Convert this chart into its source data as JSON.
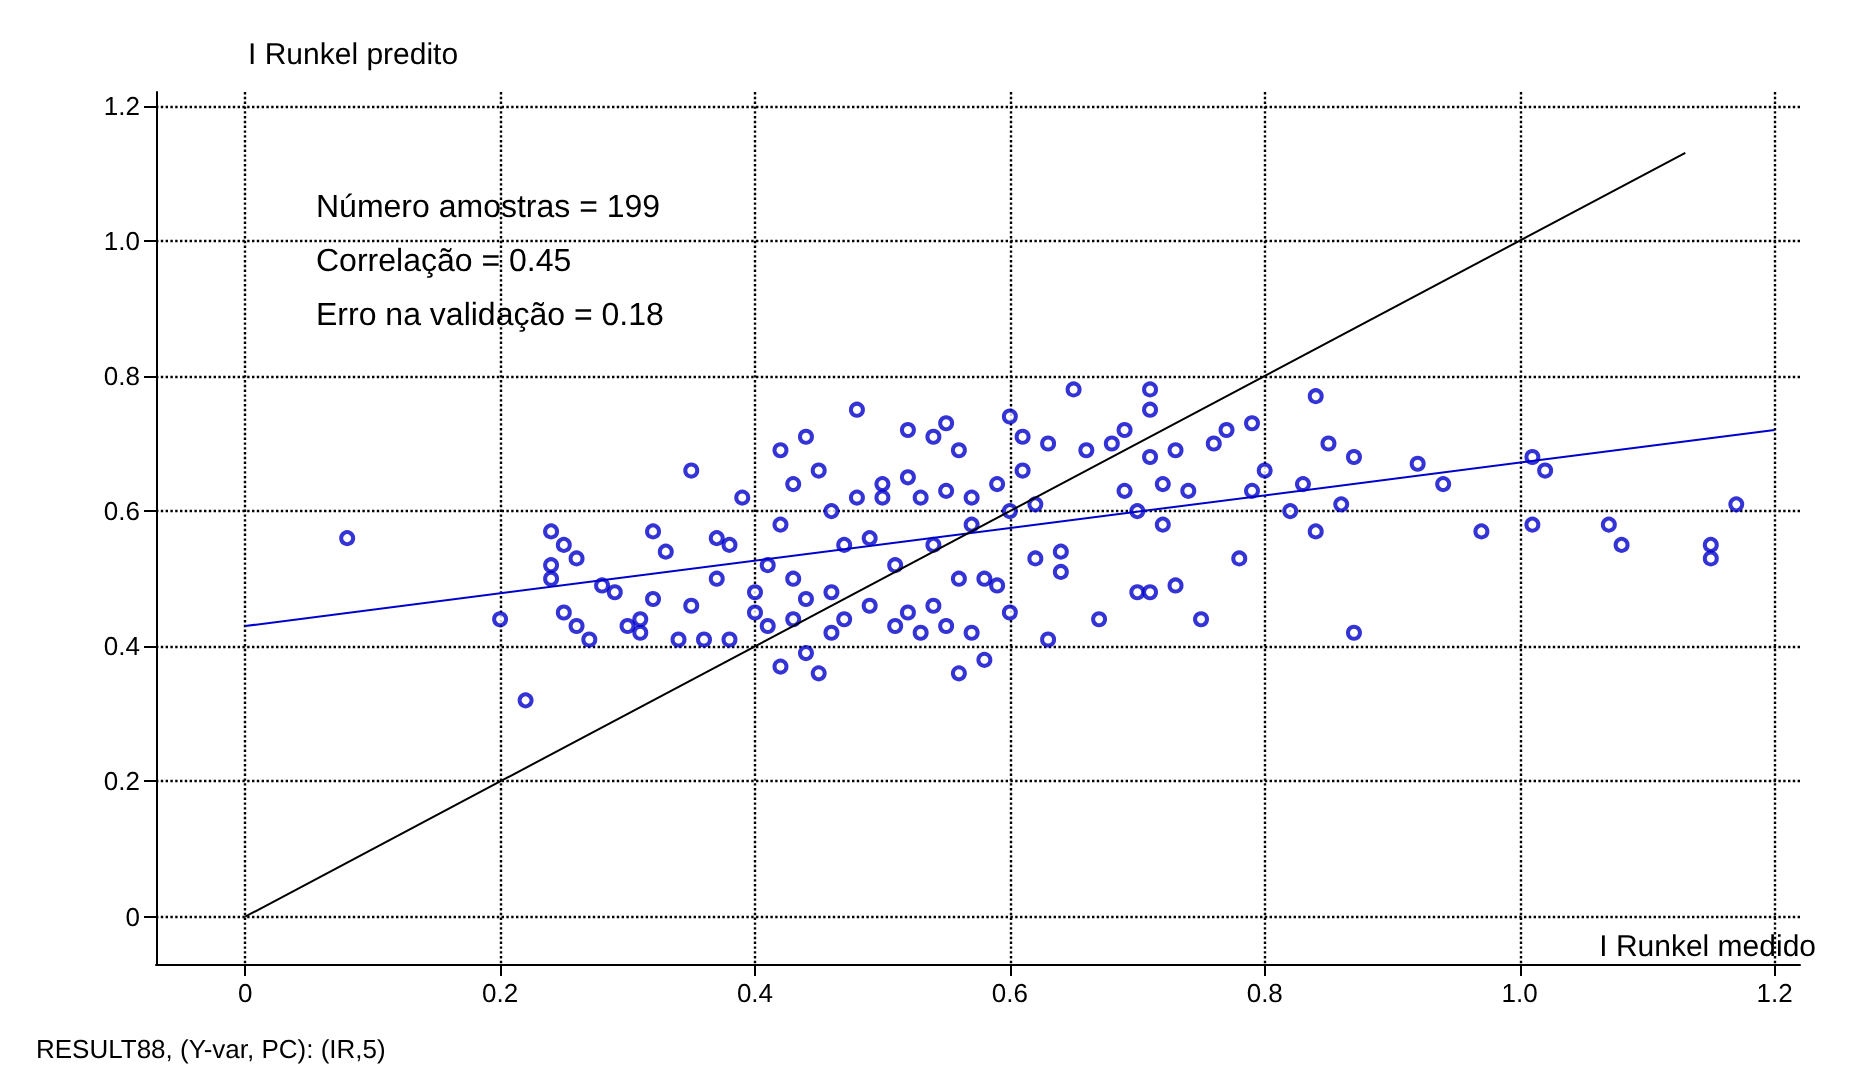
{
  "chart_data": {
    "type": "scatter",
    "xlabel": "I Runkel medido",
    "ylabel": "I Runkel predito",
    "xlim": [
      -0.07,
      1.22
    ],
    "ylim": [
      -0.07,
      1.22
    ],
    "xticks": [
      0,
      0.2,
      0.4,
      0.6,
      0.8,
      {
        "value": 1,
        "label": "1.0"
      },
      1.2
    ],
    "yticks": [
      0,
      0.2,
      0.4,
      0.6,
      0.8,
      {
        "value": 1,
        "label": "1.0"
      },
      1.2
    ],
    "grid": true,
    "annotations": [
      "Número amostras = 199",
      "Correlação = 0.45",
      "Erro na validação = 0.18",
      "RESULT88, (Y-var, PC): (IR,5)"
    ],
    "series": [
      {
        "marker": "circle",
        "color": "#0000cc",
        "x": [
          0.08,
          0.2,
          0.22,
          0.24,
          0.24,
          0.24,
          0.25,
          0.25,
          0.26,
          0.26,
          0.27,
          0.28,
          0.29,
          0.3,
          0.31,
          0.31,
          0.32,
          0.32,
          0.33,
          0.34,
          0.35,
          0.35,
          0.36,
          0.37,
          0.37,
          0.38,
          0.38,
          0.39,
          0.4,
          0.4,
          0.41,
          0.41,
          0.42,
          0.42,
          0.42,
          0.43,
          0.43,
          0.43,
          0.44,
          0.44,
          0.44,
          0.45,
          0.45,
          0.46,
          0.46,
          0.46,
          0.47,
          0.47,
          0.48,
          0.48,
          0.49,
          0.49,
          0.5,
          0.5,
          0.51,
          0.51,
          0.52,
          0.52,
          0.52,
          0.53,
          0.53,
          0.54,
          0.54,
          0.54,
          0.55,
          0.55,
          0.55,
          0.56,
          0.56,
          0.56,
          0.57,
          0.57,
          0.57,
          0.58,
          0.58,
          0.59,
          0.59,
          0.6,
          0.6,
          0.6,
          0.61,
          0.61,
          0.62,
          0.62,
          0.63,
          0.63,
          0.64,
          0.64,
          0.65,
          0.66,
          0.67,
          0.68,
          0.69,
          0.69,
          0.7,
          0.7,
          0.71,
          0.71,
          0.71,
          0.71,
          0.72,
          0.72,
          0.73,
          0.73,
          0.74,
          0.75,
          0.76,
          0.77,
          0.78,
          0.79,
          0.79,
          0.8,
          0.82,
          0.83,
          0.84,
          0.84,
          0.85,
          0.86,
          0.87,
          0.87,
          0.92,
          0.94,
          0.97,
          1.01,
          1.01,
          1.02,
          1.07,
          1.08,
          1.15,
          1.15,
          1.17
        ],
        "values": [
          0.56,
          0.44,
          0.32,
          0.57,
          0.52,
          0.5,
          0.55,
          0.45,
          0.53,
          0.43,
          0.41,
          0.49,
          0.48,
          0.43,
          0.42,
          0.44,
          0.57,
          0.47,
          0.54,
          0.41,
          0.66,
          0.46,
          0.41,
          0.5,
          0.56,
          0.55,
          0.41,
          0.62,
          0.48,
          0.45,
          0.43,
          0.52,
          0.69,
          0.58,
          0.37,
          0.64,
          0.44,
          0.5,
          0.71,
          0.47,
          0.39,
          0.66,
          0.36,
          0.6,
          0.48,
          0.42,
          0.55,
          0.44,
          0.75,
          0.62,
          0.56,
          0.46,
          0.64,
          0.62,
          0.52,
          0.43,
          0.72,
          0.65,
          0.45,
          0.62,
          0.42,
          0.71,
          0.55,
          0.46,
          0.73,
          0.63,
          0.43,
          0.69,
          0.5,
          0.36,
          0.62,
          0.58,
          0.42,
          0.5,
          0.38,
          0.64,
          0.49,
          0.74,
          0.6,
          0.45,
          0.71,
          0.66,
          0.61,
          0.53,
          0.7,
          0.41,
          0.51,
          0.54,
          0.78,
          0.69,
          0.44,
          0.7,
          0.63,
          0.72,
          0.6,
          0.48,
          0.78,
          0.75,
          0.68,
          0.48,
          0.64,
          0.58,
          0.69,
          0.49,
          0.63,
          0.44,
          0.7,
          0.72,
          0.53,
          0.73,
          0.63,
          0.66,
          0.6,
          0.64,
          0.77,
          0.57,
          0.7,
          0.61,
          0.42,
          0.68,
          0.67,
          0.64,
          0.57,
          0.58,
          0.68,
          0.66,
          0.58,
          0.55,
          0.55,
          0.53,
          0.61
        ]
      },
      {
        "type": "line",
        "marker": "none",
        "color": "#0000cc",
        "x": [
          0,
          1.2
        ],
        "values": [
          0.43,
          0.72
        ]
      },
      {
        "type": "line",
        "marker": "none",
        "color": "#000000",
        "x": [
          0,
          1.13
        ],
        "values": [
          0,
          1.13
        ]
      }
    ]
  }
}
